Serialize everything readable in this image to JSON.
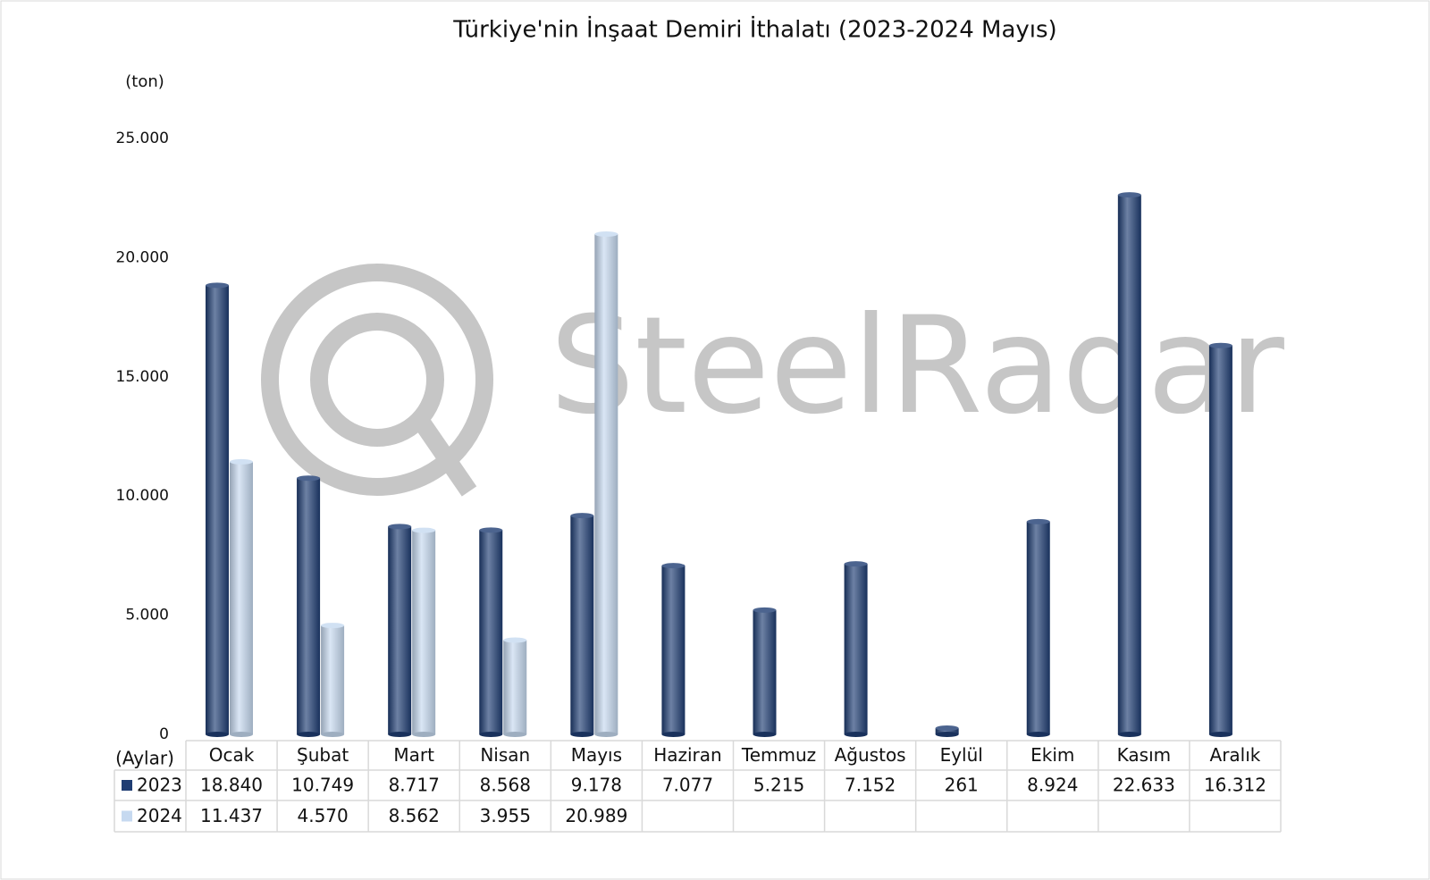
{
  "chart_data": {
    "type": "bar",
    "title": "Türkiye'nin İnşaat Demiri İthalatı (2023-2024 Mayıs)",
    "y_label": "(ton)",
    "x_label": "(Aylar)",
    "watermark": "SteelRadar",
    "categories": [
      "Ocak",
      "Şubat",
      "Mart",
      "Nisan",
      "Mayıs",
      "Haziran",
      "Temmuz",
      "Ağustos",
      "Eylül",
      "Ekim",
      "Kasım",
      "Aralık"
    ],
    "series": [
      {
        "name": "2023",
        "color": "#1f3d73",
        "values": [
          18840,
          10749,
          8717,
          8568,
          9178,
          7077,
          5215,
          7152,
          261,
          8924,
          22633,
          16312
        ],
        "value_labels": [
          "18.840",
          "10.749",
          "8.717",
          "8.568",
          "9.178",
          "7.077",
          "5.215",
          "7.152",
          "261",
          "8.924",
          "22.633",
          "16.312"
        ]
      },
      {
        "name": "2024",
        "color": "#c6d9f0",
        "values": [
          11437,
          4570,
          8562,
          3955,
          20989,
          null,
          null,
          null,
          null,
          null,
          null,
          null
        ],
        "value_labels": [
          "11.437",
          "4.570",
          "8.562",
          "3.955",
          "20.989",
          null,
          null,
          null,
          null,
          null,
          null,
          null
        ]
      }
    ],
    "ylim": [
      0,
      25000
    ],
    "yticks": [
      0,
      {
        "value": 5000,
        "label": "5.000"
      },
      {
        "value": 10000,
        "label": "10.000"
      },
      {
        "value": 15000,
        "label": "15.000"
      },
      {
        "value": 20000,
        "label": "20.000"
      },
      {
        "value": 25000,
        "label": "25.000"
      }
    ],
    "grid": false,
    "data_table": true
  }
}
